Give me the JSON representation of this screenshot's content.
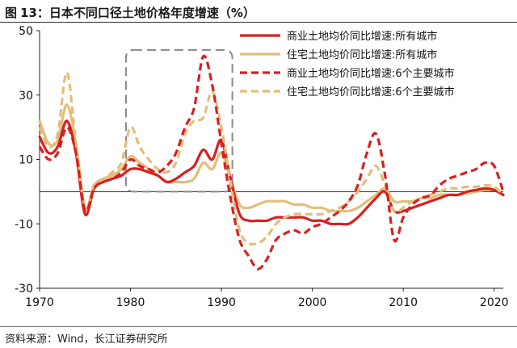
{
  "title": {
    "label": "图",
    "number": "13",
    "text": "日本不同口径土地价格年度增速（%）"
  },
  "source": "资料来源：Wind，长江证券研究所",
  "colors": {
    "commercial": "#d91f1f",
    "residential": "#e2be79",
    "highlight_box": "#888888"
  },
  "chart_data": {
    "type": "line",
    "title": "日本不同口径土地价格年度增速（%）",
    "xlabel": "",
    "ylabel": "",
    "xlim": [
      1970,
      2021
    ],
    "ylim": [
      -30,
      50
    ],
    "yticks": [
      50,
      30,
      10,
      -10,
      -30
    ],
    "xticks": [
      1970,
      1980,
      1990,
      2000,
      2010,
      2020
    ],
    "grid": false,
    "legend_position": "top-right",
    "zero_line": true,
    "highlight_region": {
      "x": [
        1979.5,
        1991.2
      ],
      "y": [
        0,
        44
      ]
    },
    "x": [
      1970,
      1971,
      1972,
      1973,
      1974,
      1975,
      1976,
      1977,
      1978,
      1979,
      1980,
      1981,
      1982,
      1983,
      1984,
      1985,
      1986,
      1987,
      1988,
      1989,
      1990,
      1991,
      1992,
      1993,
      1994,
      1995,
      1996,
      1997,
      1998,
      1999,
      2000,
      2001,
      2002,
      2003,
      2004,
      2005,
      2006,
      2007,
      2008,
      2009,
      2010,
      2011,
      2012,
      2013,
      2014,
      2015,
      2016,
      2017,
      2018,
      2019,
      2020,
      2021
    ],
    "series": [
      {
        "name": "商业土地均价同比增速:所有城市",
        "style": "solid",
        "color": "#d91f1f",
        "values": [
          17,
          12,
          14,
          22,
          12,
          -7,
          1,
          3,
          4,
          5,
          7,
          7,
          6,
          5,
          3,
          4,
          6,
          8,
          13,
          10,
          16,
          4,
          -7,
          -9,
          -9,
          -9,
          -8,
          -8,
          -8,
          -8,
          -9,
          -9,
          -10,
          -10,
          -10,
          -8,
          -5,
          -2,
          0,
          -6,
          -6,
          -5,
          -4,
          -3,
          -2,
          -1,
          -1,
          0,
          0.5,
          1,
          0.5,
          -1
        ]
      },
      {
        "name": "住宅土地均价同比增速:所有城市",
        "style": "solid",
        "color": "#e2be79",
        "values": [
          22,
          15,
          16,
          27,
          15,
          -5,
          2,
          4,
          5,
          7,
          11,
          9,
          7,
          5,
          3,
          3,
          3,
          4,
          9,
          7,
          12,
          4,
          -4,
          -5,
          -4,
          -3,
          -3,
          -3,
          -4,
          -4,
          -5,
          -5,
          -6,
          -6,
          -6,
          -5,
          -3,
          -1,
          1,
          -3,
          -3,
          -3,
          -2,
          -2,
          -1,
          -1,
          -1,
          -0.5,
          0,
          0.5,
          0.5,
          -1
        ]
      },
      {
        "name": "商业土地均价同比增速:6个主要城市",
        "style": "dashed",
        "color": "#d91f1f",
        "values": [
          14,
          10,
          12,
          20,
          12,
          -6,
          1,
          3,
          4,
          6,
          10,
          8,
          7,
          6,
          8,
          12,
          20,
          26,
          42,
          33,
          15,
          -2,
          -15,
          -20,
          -24,
          -21,
          -15,
          -13,
          -12,
          -13,
          -11,
          -10,
          -8,
          -6,
          -3,
          2,
          12,
          18,
          5,
          -15,
          -8,
          -4,
          -2,
          -1,
          2,
          4,
          5,
          6,
          7,
          9,
          8,
          0
        ]
      },
      {
        "name": "住宅土地均价同比增速:6个主要城市",
        "style": "dashed",
        "color": "#e2be79",
        "values": [
          20,
          14,
          18,
          37,
          15,
          -5,
          2,
          4,
          6,
          9,
          20,
          14,
          10,
          7,
          6,
          9,
          18,
          22,
          23,
          31,
          20,
          3,
          -12,
          -16,
          -16,
          -14,
          -10,
          -8,
          -7,
          -7,
          -7,
          -7,
          -6,
          -5,
          -3,
          0,
          4,
          8,
          2,
          -6,
          -5,
          -3,
          -2,
          -1,
          0,
          1,
          1,
          1.5,
          1.5,
          2,
          1.5,
          -1
        ]
      }
    ]
  }
}
